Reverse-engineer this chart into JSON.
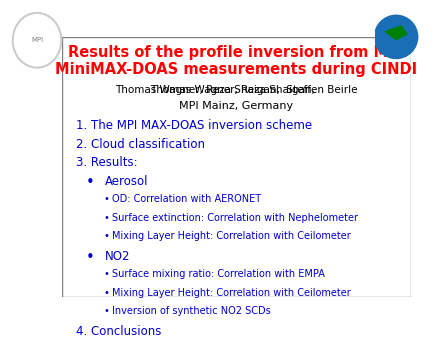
{
  "title_line1": "Results of the profile inversion from MPI",
  "title_line2": "MiniMAX-DOAS measurements during CINDI",
  "title_color": "#ff0000",
  "authors": "Thomas Wagner, Reza Shaigan,  Steffen Beirle",
  "authors_underline": "Steffen Beirle",
  "institution": "MPI Mainz, Germany",
  "text_color": "#0000cd",
  "authors_color": "#000000",
  "bg_color": "#ffffff",
  "items": [
    {
      "level": 0,
      "text": "1. The MPI MAX-DOAS inversion scheme",
      "bullet": ""
    },
    {
      "level": 0,
      "text": "2. Cloud classification",
      "bullet": ""
    },
    {
      "level": 0,
      "text": "3. Results:",
      "bullet": ""
    },
    {
      "level": 1,
      "text": "Aerosol",
      "bullet": "•"
    },
    {
      "level": 2,
      "text": "OD: Correlation with AERONET",
      "bullet": "•"
    },
    {
      "level": 2,
      "text": "Surface extinction: Correlation with Nephelometer",
      "bullet": "•"
    },
    {
      "level": 2,
      "text": "Mixing Layer Height: Correlation with Ceilometer",
      "bullet": "•"
    },
    {
      "level": 1,
      "text": "NO2",
      "bullet": "•"
    },
    {
      "level": 2,
      "text": "Surface mixing ratio: Correlation with EMPA",
      "bullet": "•"
    },
    {
      "level": 2,
      "text": "Mixing Layer Height: Correlation with Ceilometer",
      "bullet": "•"
    },
    {
      "level": 2,
      "text": "Inversion of synthetic NO2 SCDs",
      "bullet": "•"
    },
    {
      "level": 0,
      "text": "4. Conclusions",
      "bullet": ""
    }
  ]
}
